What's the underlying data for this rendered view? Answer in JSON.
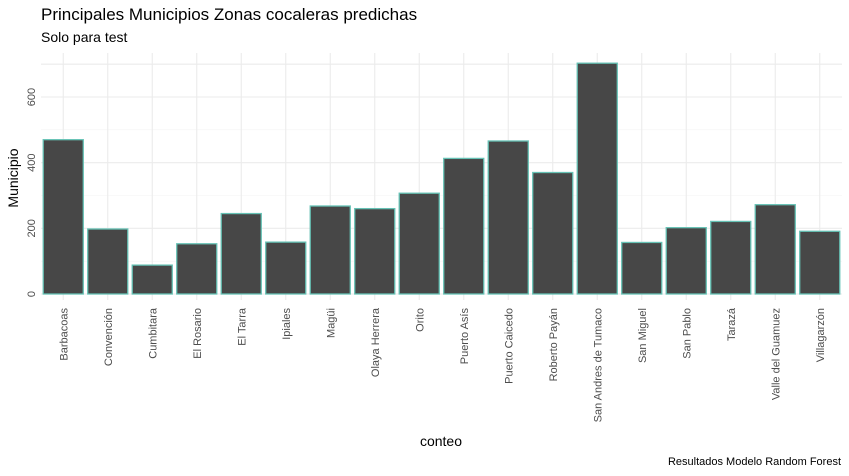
{
  "title": "Principales Municipios Zonas cocaleras predichas",
  "subtitle": "Solo para test",
  "caption": "Resultados Modelo Random Forest",
  "colors": {
    "bar_fill": "#474747",
    "bar_stroke": "#66c2b5",
    "grid_major": "#ebebeb",
    "grid_minor": "#f3f3f3"
  },
  "chart_data": {
    "type": "bar",
    "title": "Principales Municipios Zonas cocaleras predichas",
    "subtitle": "Solo para test",
    "xlabel": "conteo",
    "ylabel": "Municipio",
    "ylim": [
      0,
      710
    ],
    "yticks": [
      0,
      200,
      400,
      600
    ],
    "grid": true,
    "categories": [
      "Barbacoas",
      "Convención",
      "Cumbitara",
      "El Rosario",
      "El Tarra",
      "Ipiales",
      "Magüi",
      "Olaya Herrera",
      "Orito",
      "Puerto Asís",
      "Puerto Caicedo",
      "Roberto Payán",
      "San Andres de Tumaco",
      "San Miguel",
      "San Pablo",
      "Tarazá",
      "Valle del Guamuez",
      "Villagarzón"
    ],
    "values": [
      470,
      198,
      88,
      153,
      245,
      158,
      268,
      260,
      307,
      413,
      466,
      370,
      703,
      157,
      202,
      221,
      272,
      191
    ]
  }
}
